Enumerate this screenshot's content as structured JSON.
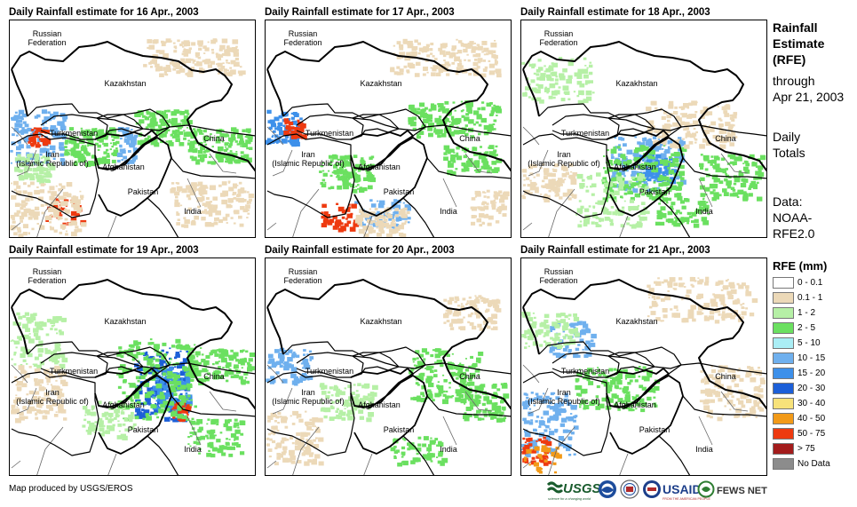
{
  "panels": [
    {
      "title": "Daily Rainfall estimate for 16 Apr., 2003"
    },
    {
      "title": "Daily Rainfall estimate for 17 Apr., 2003"
    },
    {
      "title": "Daily Rainfall estimate for 18 Apr., 2003"
    },
    {
      "title": "Daily Rainfall estimate for 19 Apr., 2003"
    },
    {
      "title": "Daily Rainfall estimate for 20 Apr., 2003"
    },
    {
      "title": "Daily Rainfall estimate for 21 Apr., 2003"
    }
  ],
  "map_labels": {
    "russia_line1": "Russian",
    "russia_line2": "Federation",
    "kazakhstan": "Kazakhstan",
    "turkmenistan": "Turkmenistan",
    "iran_line1": "Iran",
    "iran_line2": "(Islamic Republic of)",
    "afghanistan": "Afghanistan",
    "pakistan": "Pakistan",
    "china": "China",
    "india": "India"
  },
  "sidebar": {
    "line1": "Rainfall",
    "line2": "Estimate",
    "line3": "(RFE)",
    "line4": "through",
    "line5": "Apr 21, 2003",
    "totals1": "Daily",
    "totals2": "Totals",
    "data1": "Data:",
    "data2": "NOAA-",
    "data3": "RFE2.0"
  },
  "legend": {
    "title": "RFE (mm)",
    "items": [
      {
        "label": "0 - 0.1",
        "color": "#ffffff"
      },
      {
        "label": "0.1 - 1",
        "color": "#ecd9b8"
      },
      {
        "label": "1 - 2",
        "color": "#b6f0a6"
      },
      {
        "label": "2 - 5",
        "color": "#6be060"
      },
      {
        "label": "5 - 10",
        "color": "#aaeef5"
      },
      {
        "label": "10 - 15",
        "color": "#6fb0ee"
      },
      {
        "label": "15 - 20",
        "color": "#3d90ea"
      },
      {
        "label": "20 - 30",
        "color": "#1c5fd8"
      },
      {
        "label": "30 - 40",
        "color": "#f7e27a"
      },
      {
        "label": "40 - 50",
        "color": "#f29a18"
      },
      {
        "label": "50 - 75",
        "color": "#ee3a10"
      },
      {
        "label": "> 75",
        "color": "#a31c1c"
      },
      {
        "label": "No Data",
        "color": "#8c8c8c"
      }
    ]
  },
  "footer": {
    "credit": "Map produced by USGS/EROS",
    "usgs": "USGS",
    "usgs_tagline": "science for a changing world",
    "usaid": "USAID",
    "usaid_tagline": "FROM THE AMERICAN PEOPLE",
    "fews": "FEWS NET"
  }
}
